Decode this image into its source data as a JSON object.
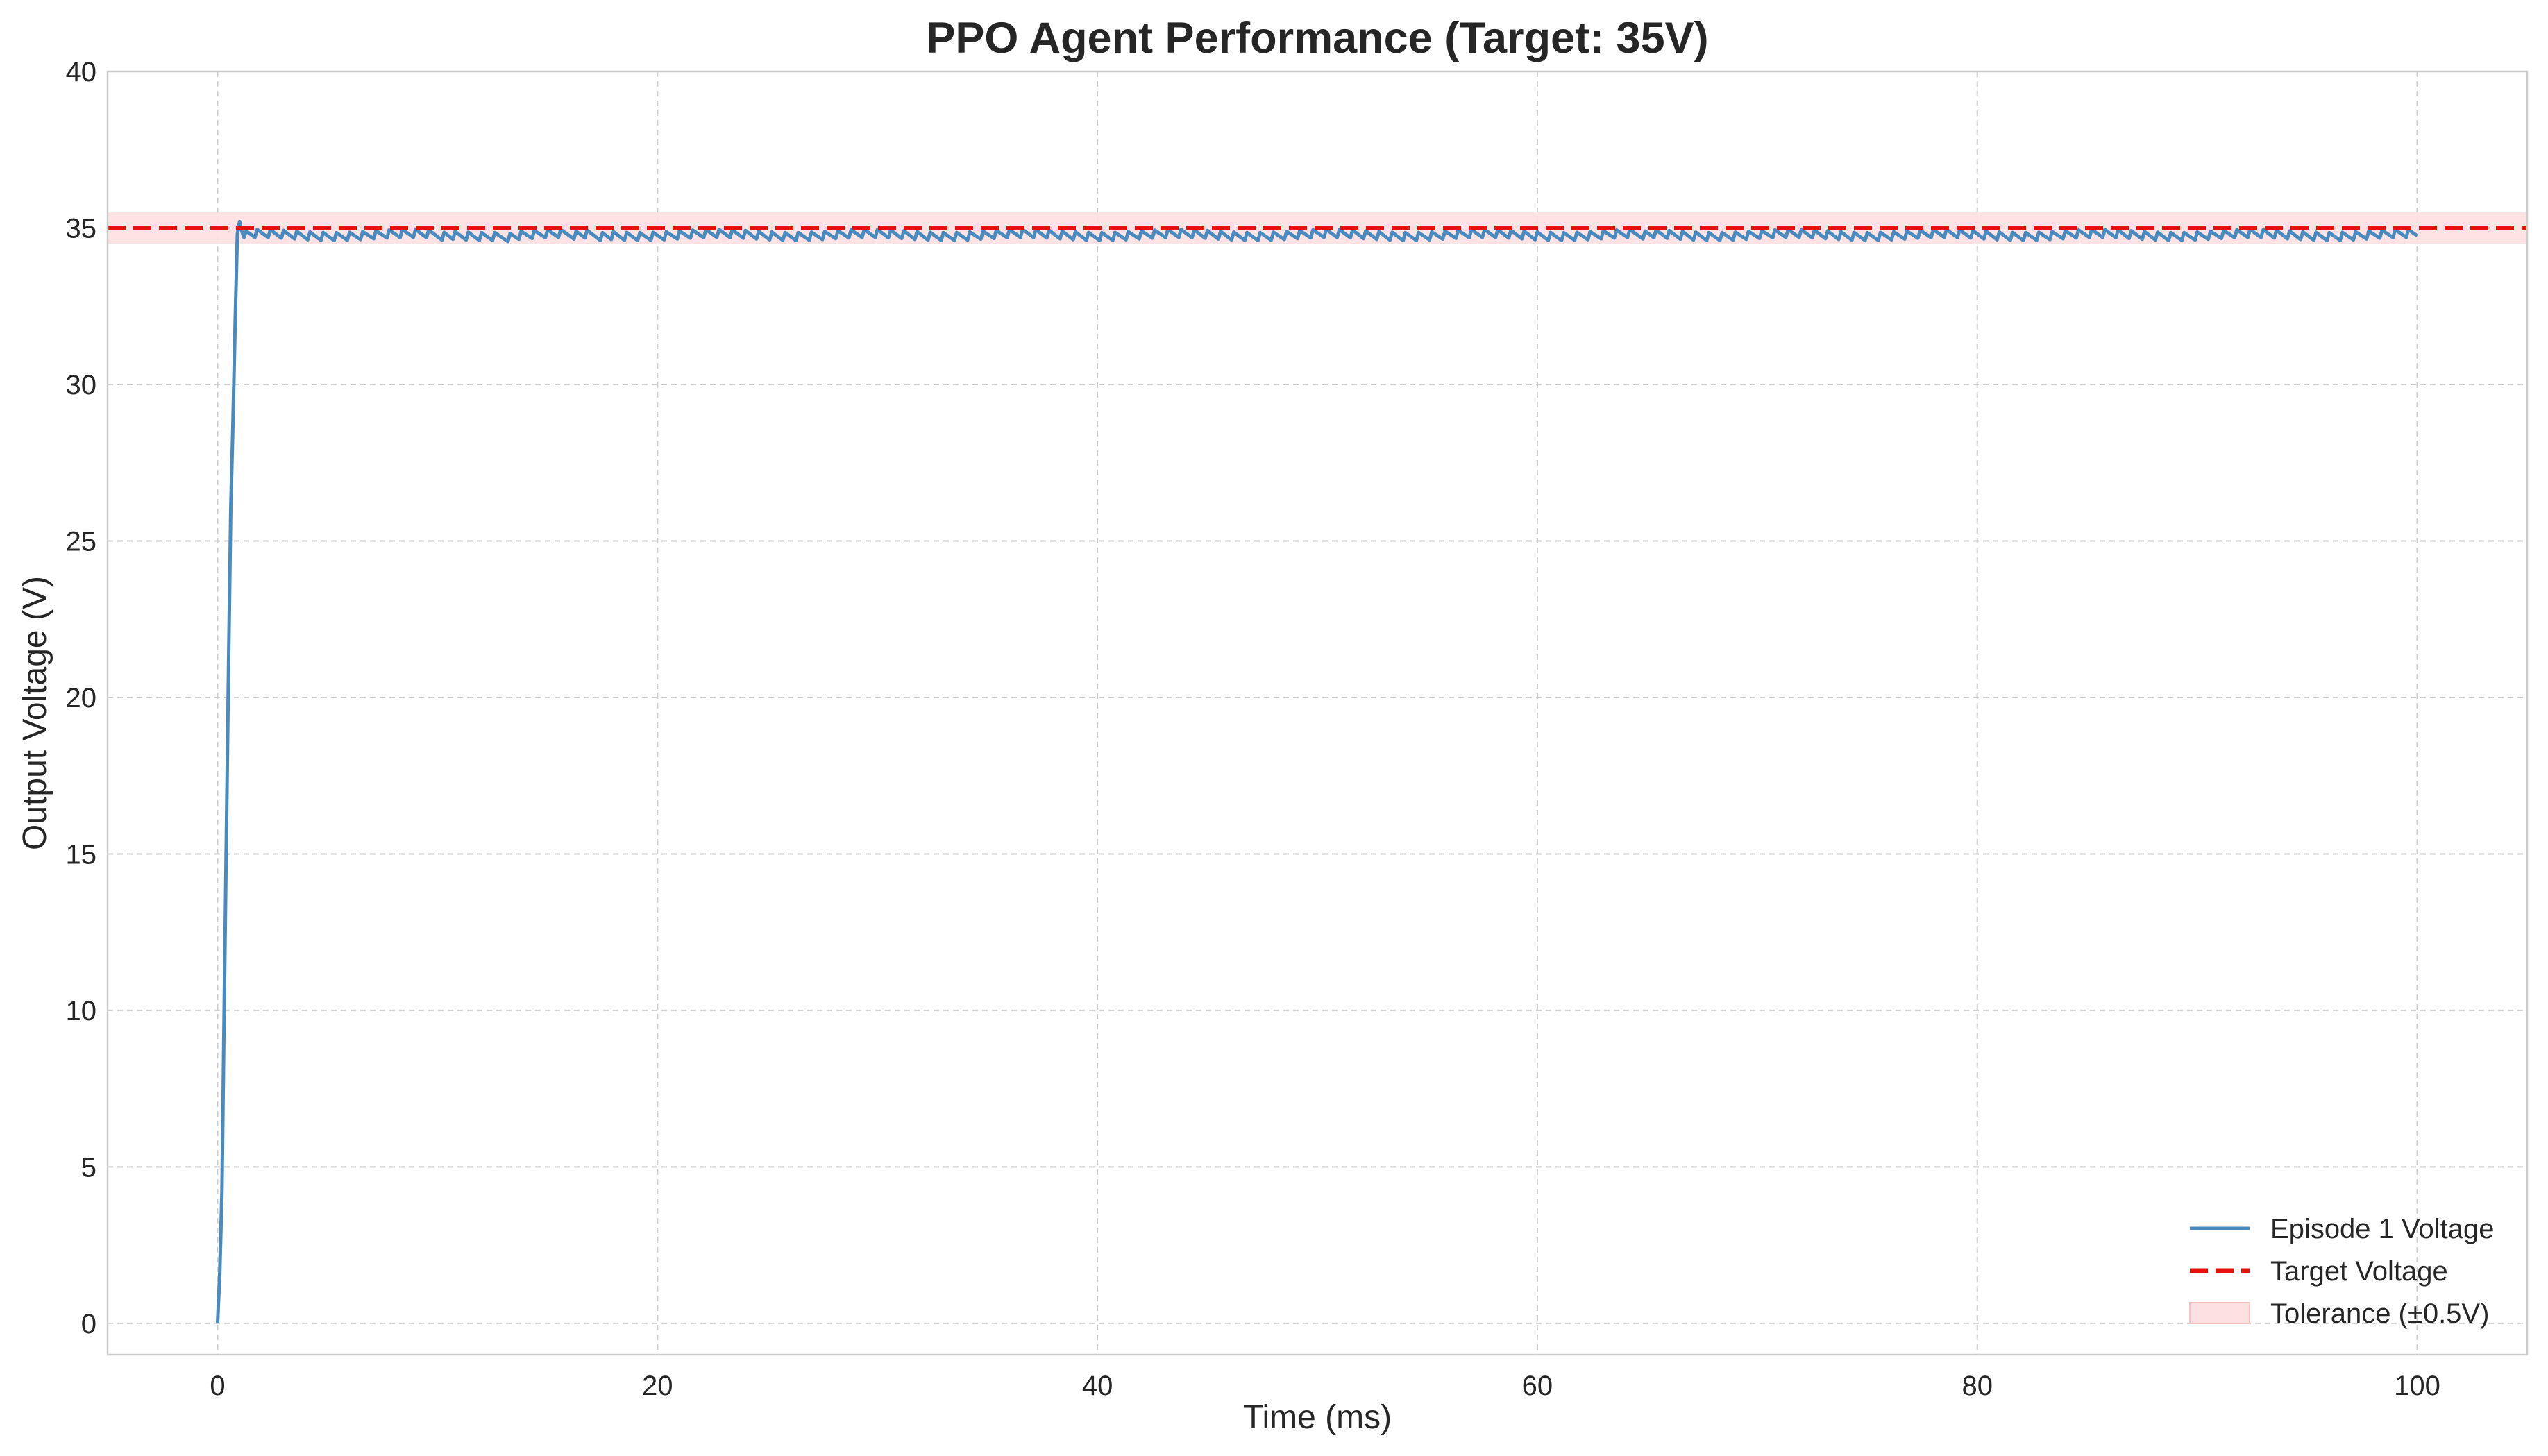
{
  "chart_data": {
    "type": "line",
    "title": "PPO Agent Performance (Target: 35V)",
    "xlabel": "Time (ms)",
    "ylabel": "Output Voltage (V)",
    "xlim": [
      -5,
      105
    ],
    "ylim": [
      -1,
      40
    ],
    "x_ticks": [
      0,
      20,
      40,
      60,
      80,
      100
    ],
    "y_ticks": [
      0,
      5,
      10,
      15,
      20,
      25,
      30,
      35,
      40
    ],
    "grid": true,
    "legend_position": "bottom-right",
    "colors": {
      "voltage": "#4a8bbf",
      "target": "#e8100c",
      "tolerance": "#fde0e0"
    },
    "series": [
      {
        "name": "Episode 1 Voltage",
        "style": "solid",
        "color": "#4a8bbf",
        "start_x": 0,
        "end_x": 100,
        "step": 0.1,
        "rise_points": [
          [
            0,
            0
          ],
          [
            0.1,
            1.6
          ],
          [
            0.2,
            4.2
          ],
          [
            0.3,
            10.0
          ],
          [
            0.4,
            15.5
          ],
          [
            0.5,
            21.0
          ],
          [
            0.6,
            26.0
          ],
          [
            0.7,
            28.8
          ],
          [
            0.8,
            32.0
          ],
          [
            0.9,
            34.8
          ],
          [
            1.0,
            35.2
          ],
          [
            1.1,
            34.9
          ],
          [
            1.2,
            34.7
          ]
        ],
        "steady_mean": 34.75,
        "ripple_amplitude": 0.15,
        "ripple_period": 0.6
      },
      {
        "name": "Target Voltage",
        "style": "dashed",
        "color": "#e8100c",
        "value": 35
      }
    ],
    "bands": [
      {
        "name": "Tolerance (±0.5V)",
        "color": "#fde0e0",
        "lower": 34.5,
        "upper": 35.5
      }
    ]
  }
}
